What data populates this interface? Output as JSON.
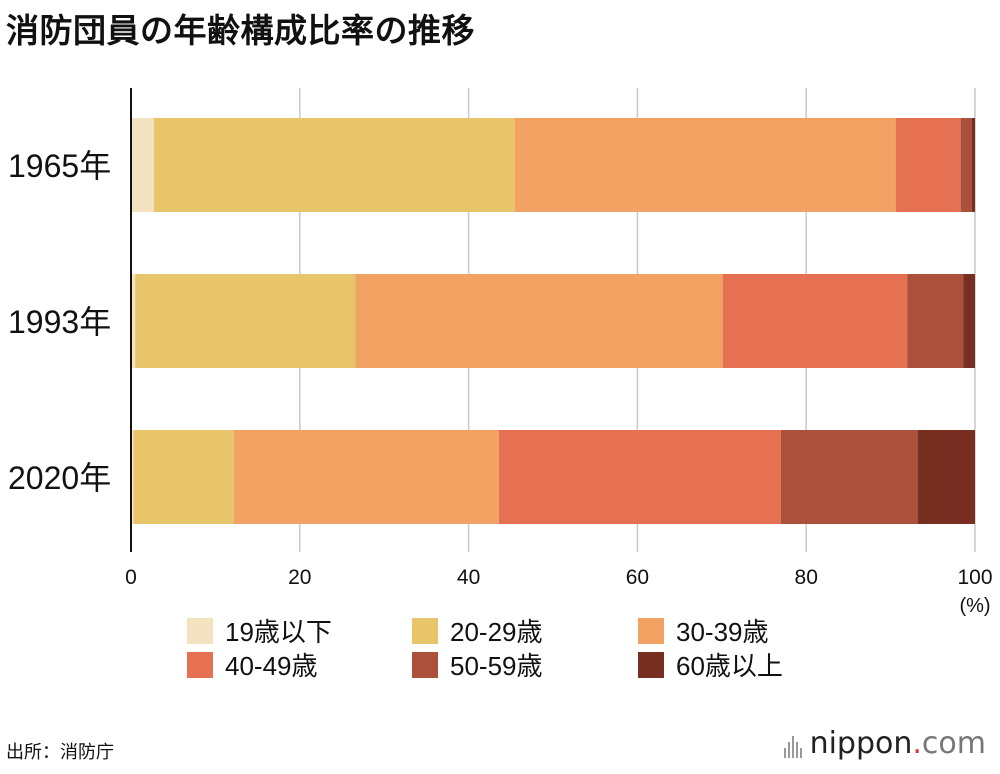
{
  "title": "消防団員の年齢構成比率の推移",
  "source": "出所：消防庁",
  "brand": {
    "name": "nippon",
    "dot": ".",
    "tld": "com"
  },
  "chart_data": {
    "type": "bar",
    "orientation": "horizontal",
    "stacked": true,
    "categories": [
      "1965年",
      "1993年",
      "2020年"
    ],
    "series": [
      {
        "name": "19歳以下",
        "color": "#f3e3c1",
        "values": [
          2.7,
          0.5,
          0.3
        ]
      },
      {
        "name": "20-29歳",
        "color": "#e8c46a",
        "values": [
          42.8,
          26.1,
          11.9
        ]
      },
      {
        "name": "30-39歳",
        "color": "#f2a263",
        "values": [
          45.1,
          43.5,
          31.4
        ]
      },
      {
        "name": "40-49歳",
        "color": "#e57152",
        "values": [
          7.7,
          21.9,
          33.4
        ]
      },
      {
        "name": "50-59歳",
        "color": "#ab513b",
        "values": [
          1.3,
          6.6,
          16.2
        ]
      },
      {
        "name": "60歳以上",
        "color": "#782f22",
        "values": [
          0.4,
          1.4,
          6.8
        ]
      }
    ],
    "x_ticks": [
      0,
      20,
      40,
      60,
      80,
      100
    ],
    "xlim": [
      0,
      100
    ],
    "x_unit": "(%)",
    "grid": true,
    "legend_position": "bottom"
  }
}
